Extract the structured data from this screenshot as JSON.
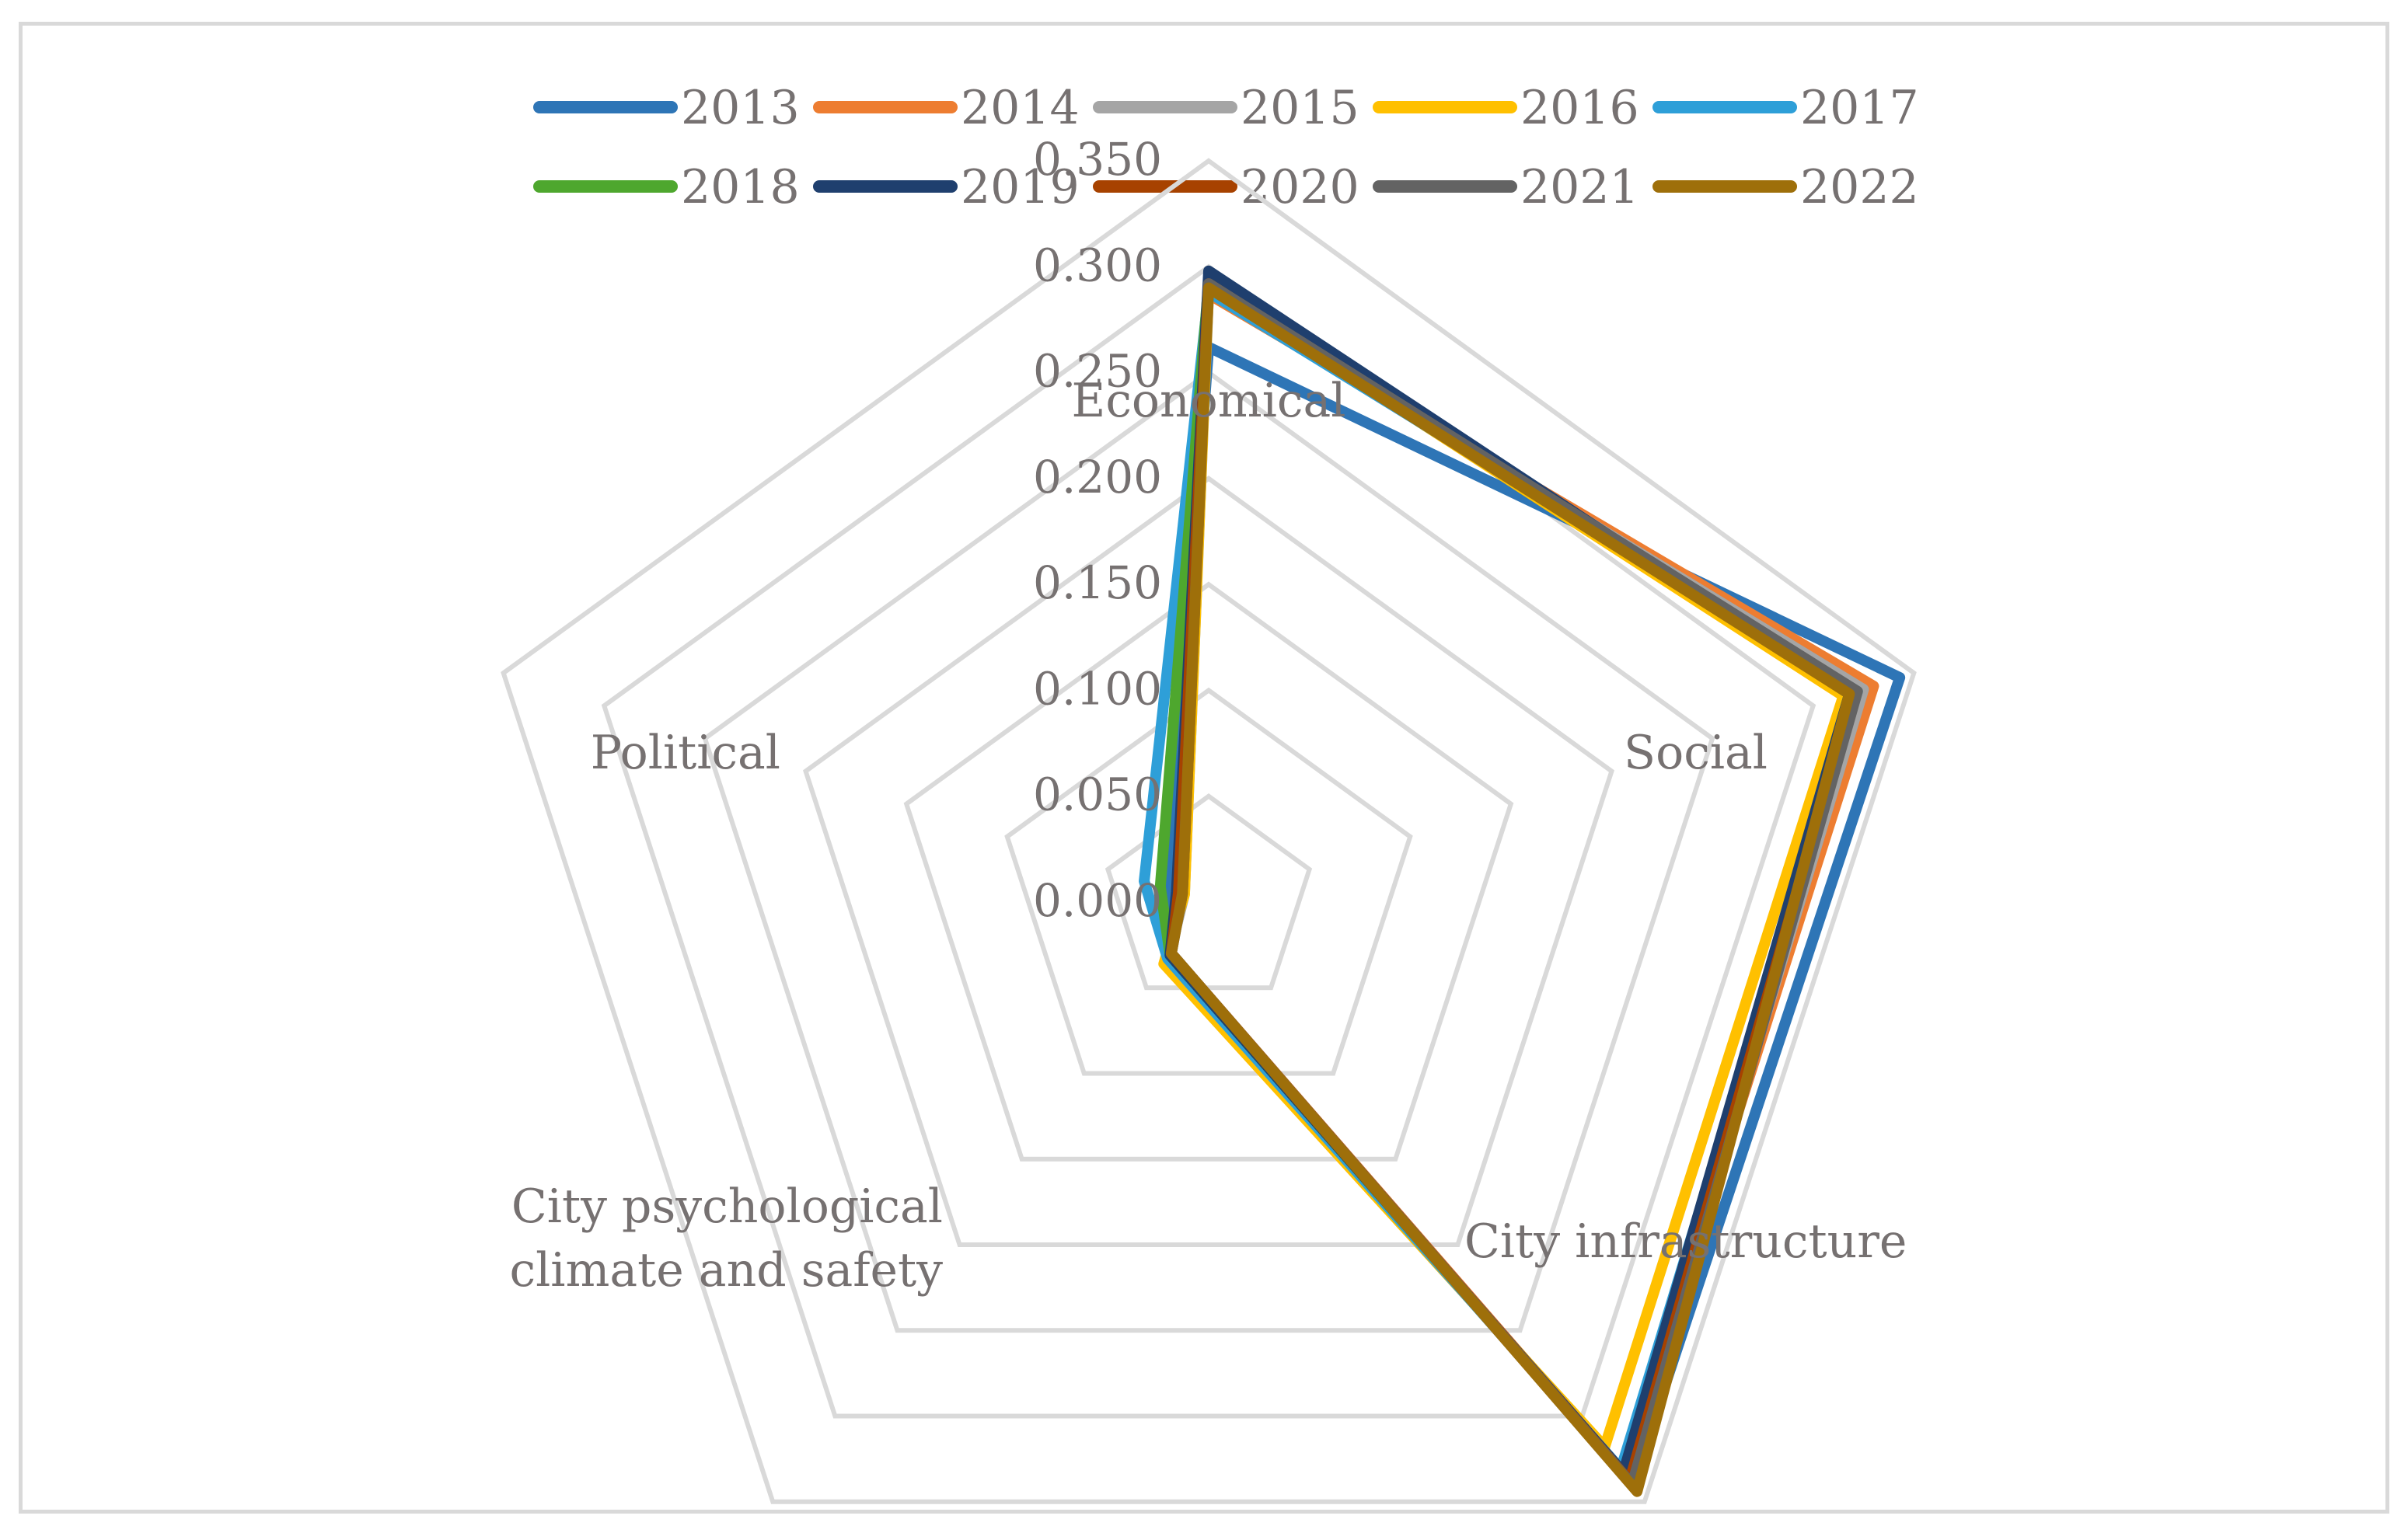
{
  "chart_data": {
    "type": "radar",
    "axes": [
      "Economical",
      "Social",
      "City infrastructure",
      "City psychological climate and safety",
      "Political"
    ],
    "axis_label_lines": [
      [
        "Economical"
      ],
      [
        "Social"
      ],
      [
        "City infrastructure"
      ],
      [
        "City psychological",
        "climate and safety"
      ],
      [
        "Political"
      ]
    ],
    "scale": {
      "min": 0,
      "max": 0.35,
      "step": 0.05,
      "tick_labels": [
        "0.000",
        "0.050",
        "0.100",
        "0.150",
        "0.200",
        "0.250",
        "0.300",
        "0.350"
      ]
    },
    "grid": true,
    "legend_position": "top",
    "series": [
      {
        "name": "2013",
        "color": "#2E75B6",
        "values": [
          0.262,
          0.343,
          0.34,
          0.03,
          0.02
        ]
      },
      {
        "name": "2014",
        "color": "#ED7D31",
        "values": [
          0.287,
          0.33,
          0.333,
          0.03,
          0.015
        ]
      },
      {
        "name": "2015",
        "color": "#A5A5A5",
        "values": [
          0.289,
          0.325,
          0.336,
          0.032,
          0.012
        ]
      },
      {
        "name": "2016",
        "color": "#FFC000",
        "values": [
          0.291,
          0.315,
          0.318,
          0.036,
          0.012
        ]
      },
      {
        "name": "2017",
        "color": "#2E9FD8",
        "values": [
          0.288,
          0.322,
          0.331,
          0.033,
          0.032
        ]
      },
      {
        "name": "2018",
        "color": "#4EA72E",
        "values": [
          0.293,
          0.318,
          0.335,
          0.031,
          0.024
        ]
      },
      {
        "name": "2019",
        "color": "#1F3F6E",
        "values": [
          0.298,
          0.318,
          0.333,
          0.031,
          0.016
        ]
      },
      {
        "name": "2020",
        "color": "#A74200",
        "values": [
          0.292,
          0.32,
          0.338,
          0.03,
          0.015
        ]
      },
      {
        "name": "2021",
        "color": "#636363",
        "values": [
          0.292,
          0.322,
          0.34,
          0.03,
          0.013
        ]
      },
      {
        "name": "2022",
        "color": "#9E6F0A",
        "values": [
          0.29,
          0.318,
          0.344,
          0.03,
          0.013
        ]
      }
    ]
  }
}
